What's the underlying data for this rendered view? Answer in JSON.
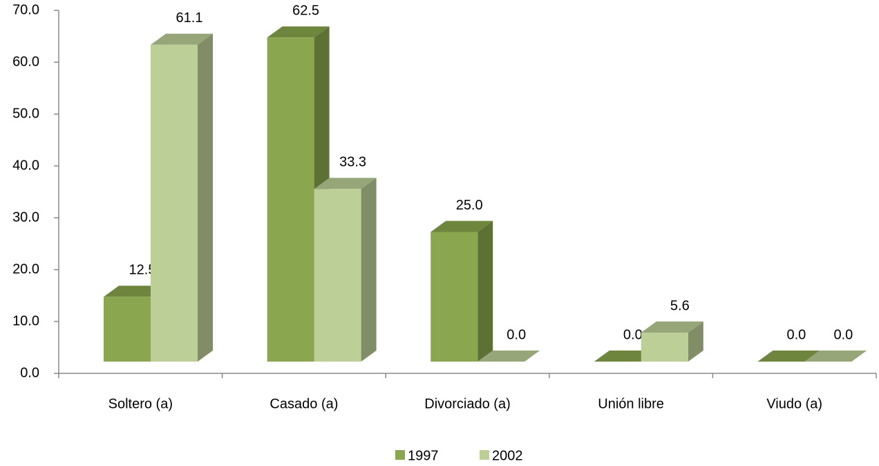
{
  "chart_data": {
    "type": "bar3d",
    "categories": [
      "Soltero (a)",
      "Casado (a)",
      "Divorciado (a)",
      "Unión libre",
      "Viudo (a)"
    ],
    "series": [
      {
        "name": "1997",
        "color": "#8aa64e",
        "values": [
          12.5,
          62.5,
          25,
          0,
          0
        ],
        "value_labels": [
          "12.5",
          "62.5",
          "25.0",
          "0.0",
          "0.0"
        ]
      },
      {
        "name": "2002",
        "color": "#bccf96",
        "values": [
          61.1,
          33.3,
          0,
          5.6,
          0
        ],
        "value_labels": [
          "61.1",
          "33.3",
          "0.0",
          "5.6",
          "0.0"
        ]
      }
    ],
    "ylim": [
      0,
      70
    ],
    "yticks": [
      {
        "value": 0,
        "label": "0.0"
      },
      {
        "value": 10,
        "label": "10.0"
      },
      {
        "value": 20,
        "label": "20.0"
      },
      {
        "value": 30,
        "label": "30.0"
      },
      {
        "value": 40,
        "label": "40.0"
      },
      {
        "value": 50,
        "label": "50.0"
      },
      {
        "value": 60,
        "label": "60.0"
      },
      {
        "value": 70,
        "label": "70.0"
      }
    ],
    "legend": "bottom"
  }
}
